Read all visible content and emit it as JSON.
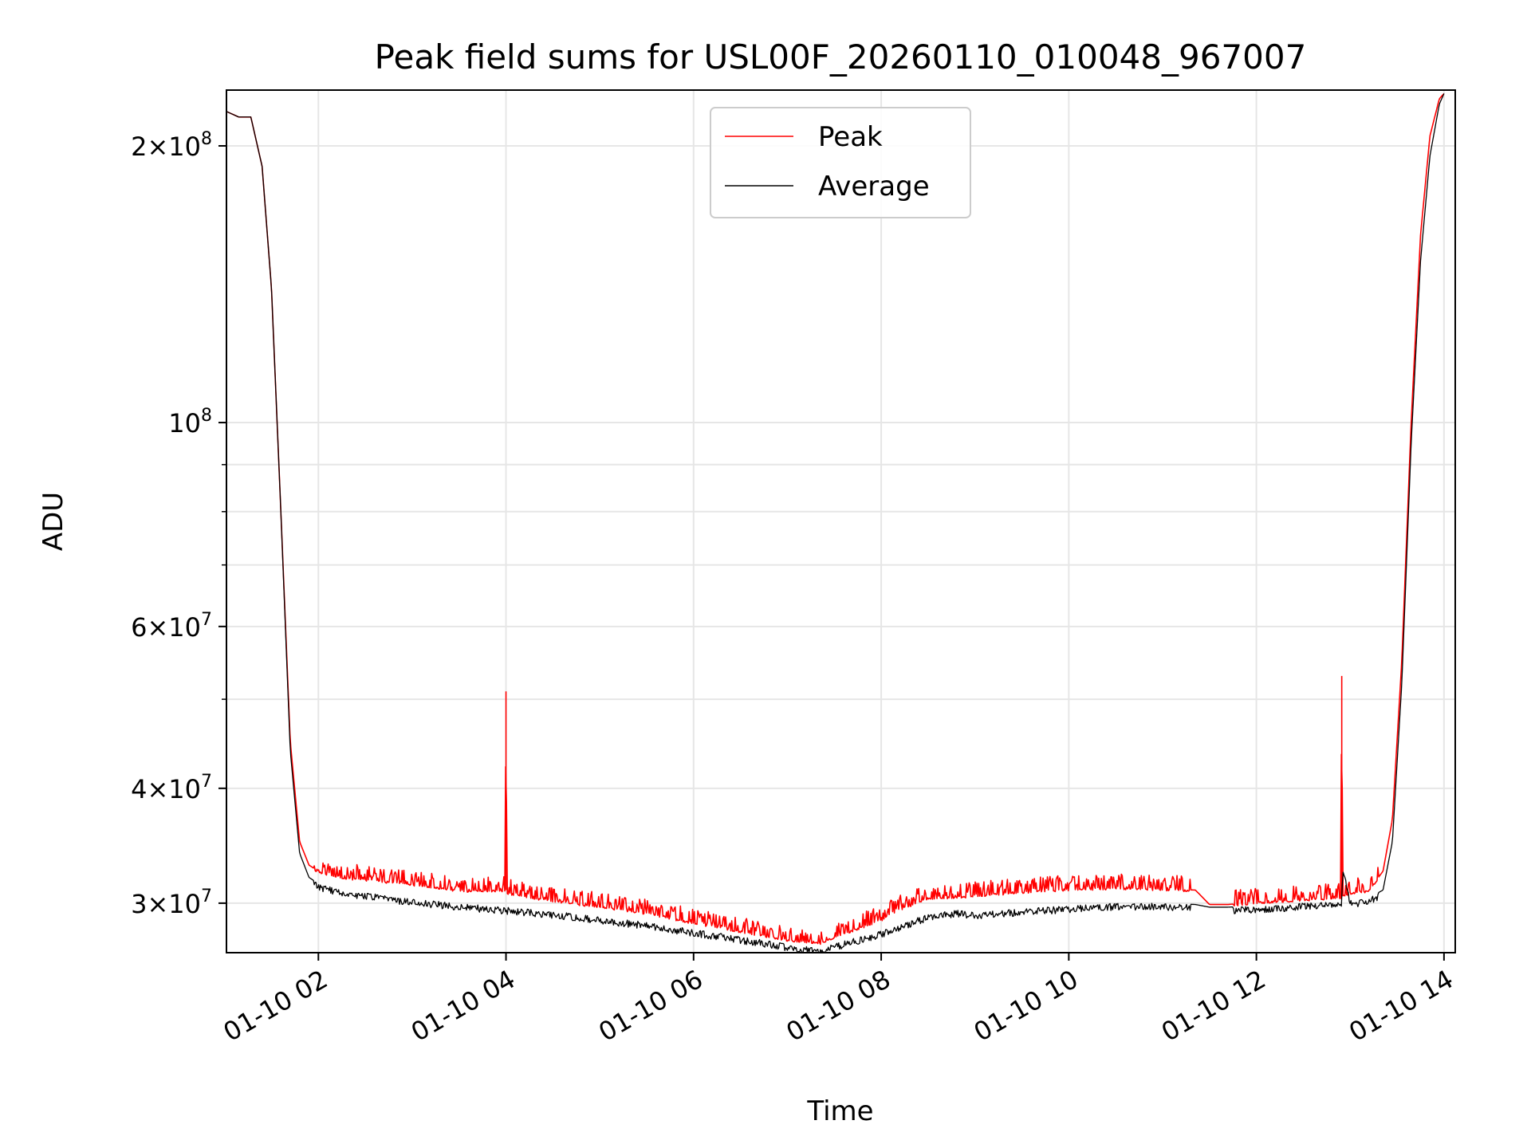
{
  "chart_data": {
    "type": "line",
    "title": "Peak field sums for USL00F_20260110_010048_967007",
    "xlabel": "Time",
    "ylabel": "ADU",
    "yscale": "log",
    "grid": true,
    "x_unit": "hours since 01-10 00:00",
    "xlim": [
      1.02,
      14.12
    ],
    "ylim": [
      26500000,
      230000000
    ],
    "xticks": [
      {
        "value": 2,
        "label": "01-10 02"
      },
      {
        "value": 4,
        "label": "01-10 04"
      },
      {
        "value": 6,
        "label": "01-10 06"
      },
      {
        "value": 8,
        "label": "01-10 08"
      },
      {
        "value": 10,
        "label": "01-10 10"
      },
      {
        "value": 12,
        "label": "01-10 12"
      },
      {
        "value": 14,
        "label": "01-10 14"
      }
    ],
    "yticks": [
      {
        "value": 30000000,
        "mantissa": "3",
        "exponent": "7"
      },
      {
        "value": 40000000,
        "mantissa": "4",
        "exponent": "7"
      },
      {
        "value": 60000000,
        "mantissa": "6",
        "exponent": "7"
      },
      {
        "value": 100000000,
        "mantissa": "",
        "exponent": "8"
      },
      {
        "value": 200000000,
        "mantissa": "2",
        "exponent": "8"
      }
    ],
    "y_minor_ticks": [
      50000000,
      70000000,
      80000000,
      90000000
    ],
    "legend": {
      "position": "upper center"
    },
    "series": [
      {
        "name": "Peak",
        "color": "#ff0000",
        "noise_band": 0.035,
        "x": [
          1.02,
          1.15,
          1.28,
          1.4,
          1.5,
          1.6,
          1.7,
          1.8,
          1.9,
          2.0,
          2.3,
          2.6,
          3.0,
          3.5,
          3.99,
          4.0,
          4.01,
          4.5,
          5.0,
          5.5,
          6.0,
          6.5,
          7.0,
          7.35,
          7.5,
          8.0,
          8.2,
          8.5,
          8.8,
          9.0,
          9.5,
          10.0,
          10.5,
          11.0,
          11.35,
          11.5,
          11.7,
          12.0,
          12.5,
          12.9,
          12.91,
          12.92,
          13.0,
          13.2,
          13.35,
          13.45,
          13.55,
          13.65,
          13.75,
          13.85,
          13.95,
          14.0
        ],
        "y": [
          218000000,
          215000000,
          215000000,
          190000000,
          140000000,
          80000000,
          45000000,
          35000000,
          33000000,
          32500000,
          32000000,
          31800000,
          31500000,
          31000000,
          31000000,
          51000000,
          30800000,
          30200000,
          29800000,
          29300000,
          28600000,
          28000000,
          27400000,
          27200000,
          27600000,
          28800000,
          29600000,
          30400000,
          30500000,
          30600000,
          30900000,
          31100000,
          31200000,
          31100000,
          31000000,
          29900000,
          29900000,
          30100000,
          30300000,
          30500000,
          53000000,
          30600000,
          30800000,
          31000000,
          32500000,
          37000000,
          55000000,
          100000000,
          160000000,
          205000000,
          225000000,
          228000000
        ]
      },
      {
        "name": "Average",
        "color": "#000000",
        "noise_band": 0.015,
        "x": [
          1.02,
          1.15,
          1.28,
          1.4,
          1.5,
          1.6,
          1.7,
          1.8,
          1.9,
          2.0,
          2.3,
          2.6,
          3.0,
          3.5,
          4.0,
          4.5,
          5.0,
          5.5,
          6.0,
          6.5,
          7.0,
          7.35,
          7.5,
          8.0,
          8.2,
          8.5,
          8.8,
          9.0,
          9.5,
          10.0,
          10.5,
          11.0,
          11.35,
          11.5,
          11.7,
          12.0,
          12.5,
          12.91,
          12.92,
          13.0,
          13.2,
          13.35,
          13.45,
          13.55,
          13.65,
          13.75,
          13.85,
          13.95,
          14.0
        ],
        "y": [
          218000000,
          215000000,
          215000000,
          190000000,
          140000000,
          80000000,
          44000000,
          34000000,
          32000000,
          31500000,
          31000000,
          30700000,
          30300000,
          30000000,
          29700000,
          29400000,
          29000000,
          28600000,
          28100000,
          27600000,
          27100000,
          26800000,
          27100000,
          28000000,
          28500000,
          29200000,
          29500000,
          29300000,
          29600000,
          29800000,
          30000000,
          30000000,
          29900000,
          29700000,
          29700000,
          29800000,
          30000000,
          30200000,
          33000000,
          30200000,
          30400000,
          31000000,
          35000000,
          52000000,
          95000000,
          150000000,
          195000000,
          222000000,
          228000000
        ]
      }
    ]
  }
}
